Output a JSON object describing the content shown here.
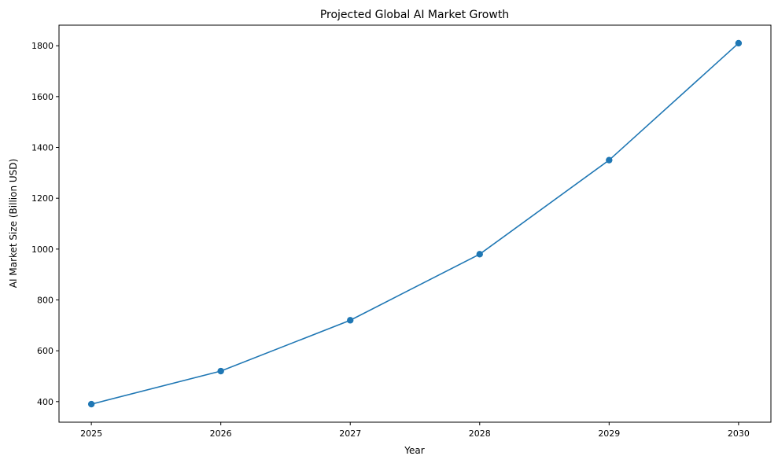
{
  "chart_data": {
    "type": "line",
    "title": "Projected Global AI Market Growth",
    "xlabel": "Year",
    "ylabel": "AI Market Size (Billion USD)",
    "x": [
      2025,
      2026,
      2027,
      2028,
      2029,
      2030
    ],
    "series": [
      {
        "values": [
          390,
          520,
          720,
          980,
          1350,
          1810
        ],
        "color": "#1f77b4",
        "marker": "circle"
      }
    ],
    "xticks": [
      "2025",
      "2026",
      "2027",
      "2028",
      "2029",
      "2030"
    ],
    "yticks": [
      "400",
      "600",
      "800",
      "1000",
      "1200",
      "1400",
      "1600",
      "1800"
    ],
    "xlim": [
      2024.75,
      2030.25
    ],
    "ylim": [
      319,
      1881
    ],
    "grid": false,
    "legend": "none"
  }
}
